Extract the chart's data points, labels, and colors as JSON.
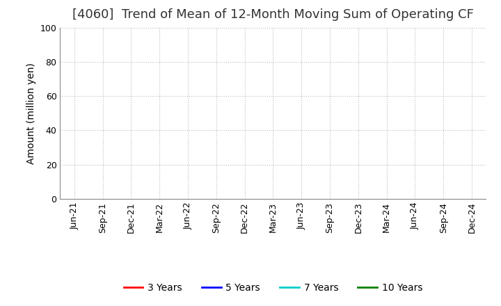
{
  "title": "[4060]  Trend of Mean of 12-Month Moving Sum of Operating CF",
  "ylabel": "Amount (million yen)",
  "ylim": [
    0,
    100
  ],
  "yticks": [
    0,
    20,
    40,
    60,
    80,
    100
  ],
  "x_labels": [
    "Jun-21",
    "Sep-21",
    "Dec-21",
    "Mar-22",
    "Jun-22",
    "Sep-22",
    "Dec-22",
    "Mar-23",
    "Jun-23",
    "Sep-23",
    "Dec-23",
    "Mar-24",
    "Jun-24",
    "Sep-24",
    "Dec-24"
  ],
  "legend_entries": [
    {
      "label": "3 Years",
      "color": "#FF0000"
    },
    {
      "label": "5 Years",
      "color": "#0000FF"
    },
    {
      "label": "7 Years",
      "color": "#00CCCC"
    },
    {
      "label": "10 Years",
      "color": "#008000"
    }
  ],
  "background_color": "#FFFFFF",
  "grid_color": "#BBBBBB",
  "title_fontsize": 13,
  "axis_label_fontsize": 10,
  "tick_fontsize": 9,
  "legend_fontsize": 10
}
